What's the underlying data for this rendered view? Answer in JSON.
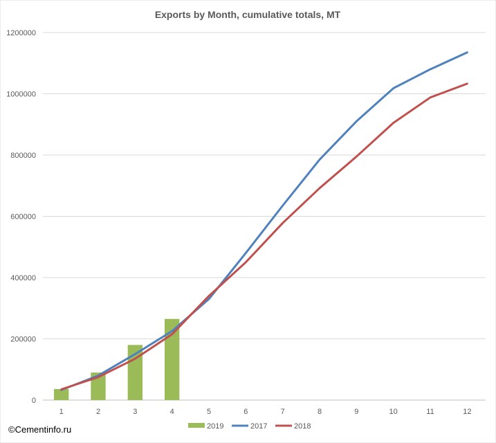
{
  "chart_data": {
    "type": "bar+line",
    "title": "Exports by Month, cumulative totals, MT",
    "categories": [
      "1",
      "2",
      "3",
      "4",
      "5",
      "6",
      "7",
      "8",
      "9",
      "10",
      "11",
      "12"
    ],
    "ylim": [
      0,
      1200000
    ],
    "yticks": [
      "0",
      "200000",
      "400000",
      "600000",
      "800000",
      "1000000",
      "1200000"
    ],
    "ytick_values": [
      0,
      200000,
      400000,
      600000,
      800000,
      1000000,
      1200000
    ],
    "grid": true,
    "legend_position": "bottom",
    "series": [
      {
        "name": "2019",
        "type": "bar",
        "color": "#9BBB59",
        "values": [
          36000,
          90000,
          180000,
          265000,
          null,
          null,
          null,
          null,
          null,
          null,
          null,
          null
        ]
      },
      {
        "name": "2017",
        "type": "line",
        "color": "#4F81BD",
        "values": [
          33000,
          80000,
          150000,
          225000,
          330000,
          480000,
          635000,
          785000,
          910000,
          1018000,
          1080000,
          1135000
        ]
      },
      {
        "name": "2018",
        "type": "line",
        "color": "#C0504D",
        "values": [
          35000,
          75000,
          135000,
          215000,
          340000,
          450000,
          578000,
          692000,
          795000,
          905000,
          988000,
          1033000
        ]
      }
    ]
  },
  "footer": {
    "copyright": "©Cementinfo.ru"
  }
}
